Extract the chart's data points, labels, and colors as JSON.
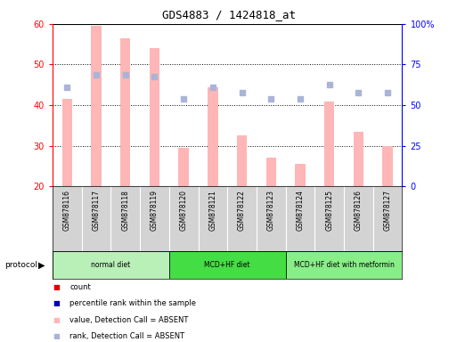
{
  "title": "GDS4883 / 1424818_at",
  "samples": [
    "GSM878116",
    "GSM878117",
    "GSM878118",
    "GSM878119",
    "GSM878120",
    "GSM878121",
    "GSM878122",
    "GSM878123",
    "GSM878124",
    "GSM878125",
    "GSM878126",
    "GSM878127"
  ],
  "bar_values": [
    41.5,
    59.5,
    56.5,
    54.0,
    29.5,
    44.5,
    32.5,
    27.0,
    25.5,
    41.0,
    33.5,
    30.0
  ],
  "scatter_values": [
    44.5,
    47.5,
    47.5,
    47.0,
    41.5,
    44.5,
    43.0,
    41.5,
    41.5,
    45.0,
    43.0,
    43.0
  ],
  "ylim_left": [
    20,
    60
  ],
  "ylim_right": [
    0,
    100
  ],
  "protocols": [
    {
      "label": "normal diet",
      "start": 0,
      "end": 4
    },
    {
      "label": "MCD+HF diet",
      "start": 4,
      "end": 8
    },
    {
      "label": "MCD+HF diet with metformin",
      "start": 8,
      "end": 12
    }
  ],
  "proto_colors": [
    "#b8f0b8",
    "#44dd44",
    "#88ee88"
  ],
  "bar_color_absent": "#ffb6b6",
  "scatter_color_absent": "#aab4d8",
  "legend_items": [
    {
      "label": "count",
      "color": "#dd0000"
    },
    {
      "label": "percentile rank within the sample",
      "color": "#0000aa"
    },
    {
      "label": "value, Detection Call = ABSENT",
      "color": "#ffb6b6"
    },
    {
      "label": "rank, Detection Call = ABSENT",
      "color": "#aab4d8"
    }
  ],
  "sample_bg": "#d3d3d3"
}
